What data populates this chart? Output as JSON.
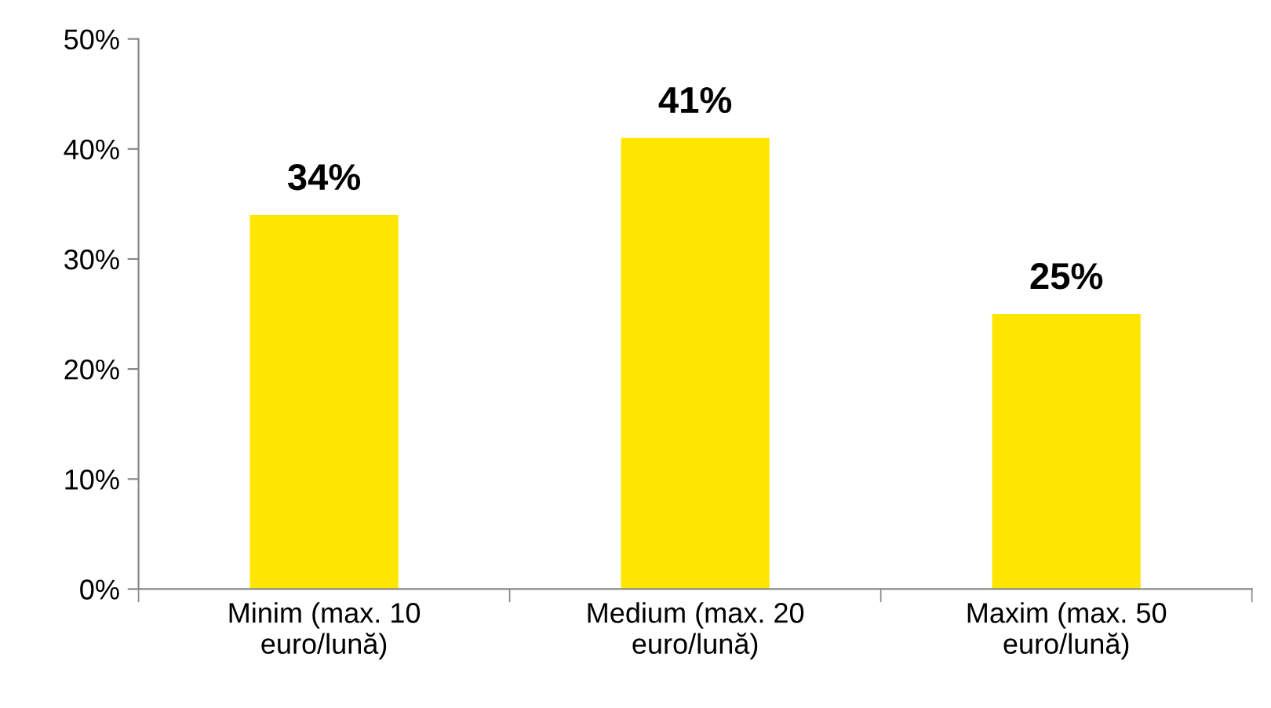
{
  "chart_data": {
    "type": "bar",
    "categories": [
      "Minim (max. 10\neuro/lună)",
      "Medium (max. 20\neuro/lună)",
      "Maxim (max. 50\neuro/lună)"
    ],
    "values": [
      34,
      41,
      25
    ],
    "value_labels": [
      "34%",
      "41%",
      "25%"
    ],
    "color": "#ffe600",
    "ylim": [
      0,
      50
    ],
    "yticks": [
      {
        "value": 0,
        "label": "0%"
      },
      {
        "value": 10,
        "label": "10%"
      },
      {
        "value": 20,
        "label": "20%"
      },
      {
        "value": 30,
        "label": "30%"
      },
      {
        "value": 40,
        "label": "40%"
      },
      {
        "value": 50,
        "label": "50%"
      }
    ],
    "grid": false,
    "legend": false
  }
}
